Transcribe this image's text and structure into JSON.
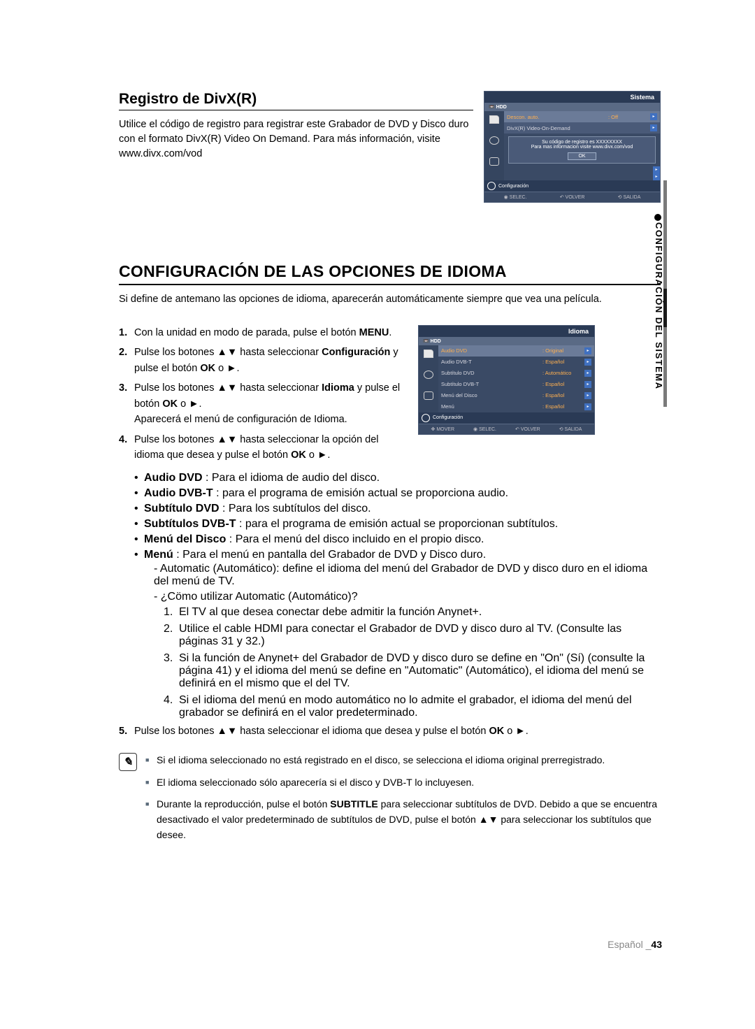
{
  "section1": {
    "title": "Registro de DivX(R)",
    "body": "Utilice el código de registro para registrar este Grabador de DVD y Disco duro con el formato DivX(R) Video On Demand. Para más información, visite www.divx.com/vod"
  },
  "osd1": {
    "title": "Sistema",
    "hdd": "HDD",
    "row1_label": "Descon. auto.",
    "row1_val": ": Off",
    "row2_label": "DivX(R) Video-On-Demand",
    "dialog_l1": "Su código de registro es XXXXXXXX",
    "dialog_l2": "Para mas informacion visite www.divx.com/vod",
    "ok": "OK",
    "config": "Configuración",
    "f1": "◉ SELEC.",
    "f2": "↶ VOLVER",
    "f3": "⟲ SALIDA"
  },
  "osd2": {
    "title": "Idioma",
    "hdd": "HDD",
    "rows": [
      {
        "label": "Audio DVD",
        "val": ": Original"
      },
      {
        "label": "Audio DVB-T",
        "val": ": Español"
      },
      {
        "label": "Subtítulo DVD",
        "val": ": Automático"
      },
      {
        "label": "Subtítulo DVB-T",
        "val": ": Español"
      },
      {
        "label": "Menú del Disco",
        "val": ": Español"
      },
      {
        "label": "Menú",
        "val": ": Español"
      }
    ],
    "config": "Configuración",
    "f0": "✥ MOVER",
    "f1": "◉ SELEC.",
    "f2": "↶ VOLVER",
    "f3": "⟲ SALIDA"
  },
  "heading": "CONFIGURACIÓN DE LAS OPCIONES DE IDIOMA",
  "intro": "Si define de antemano las opciones de idioma, aparecerán automáticamente siempre que vea una película.",
  "steps": {
    "s1_a": "Con la unidad en modo de parada, pulse el botón ",
    "s1_b": "MENU",
    "s1_c": ".",
    "s2_a": "Pulse los botones ▲▼ hasta seleccionar ",
    "s2_b": "Configuración",
    "s2_c": " y pulse el botón ",
    "s2_d": "OK",
    "s2_e": " o ►.",
    "s3_a": "Pulse los botones ▲▼ hasta seleccionar ",
    "s3_b": "Idioma",
    "s3_c": " y pulse el botón ",
    "s3_d": "OK",
    "s3_e": " o ►.",
    "s3_f": "Aparecerá el menú de configuración de Idioma.",
    "s4_a": "Pulse los botones ▲▼ hasta seleccionar la opción del idioma que desea y pulse el botón ",
    "s4_b": "OK",
    "s4_c": " o ►.",
    "s5_a": "Pulse los botones ▲▼ hasta seleccionar el idioma que desea y pulse el botón ",
    "s5_b": "OK",
    "s5_c": " o ►."
  },
  "bullets": {
    "b1_a": "Audio DVD",
    "b1_b": " : Para el idioma de audio del disco.",
    "b2_a": "Audio DVB-T",
    "b2_b": " : para el programa de emisión actual se proporciona audio.",
    "b3_a": "Subtítulo DVD",
    "b3_b": " : Para los subtítulos del disco.",
    "b4_a": "Subtítulos DVB-T",
    "b4_b": " : para el programa de emisión actual se proporcionan subtítulos.",
    "b5_a": "Menú del Disco",
    "b5_b": " : Para el menú del disco incluido en el propio disco.",
    "b6_a": "Menú",
    "b6_b": " : Para el menú en pantalla del Grabador de DVD y Disco duro.",
    "sub1": "- Automatic (Automático): define el idioma del menú del Grabador de DVD y disco duro en el idioma del menú de TV.",
    "sub2": "- ¿Cömo utilizar Automatic (Automático)?",
    "n1": "El TV al que desea conectar debe admitir la función Anynet+.",
    "n2": "Utilice el cable HDMI para conectar el Grabador de DVD y disco duro al TV. (Consulte las páginas 31 y 32.)",
    "n3": "Si la función de Anynet+ del Grabador de DVD y disco duro se define en \"On\" (Sí) (consulte la página 41) y el idioma del menú se define en \"Automatic\" (Automático), el idioma del menú se definirá en el mismo que el del TV.",
    "n4": "Si el idioma del menú en modo automático no lo admite el grabador, el idioma del menú del grabador se definirá en el valor predeterminado."
  },
  "notes": {
    "n1": "Si el idioma seleccionado no está registrado en el disco, se selecciona el idioma original prerregistrado.",
    "n2": "El idioma seleccionado sólo aparecería si el disco y DVB-T lo incluyesen.",
    "n3_a": "Durante la reproducción, pulse el botón ",
    "n3_b": "SUBTITLE",
    "n3_c": " para seleccionar subtítulos de DVD. Debido a que se encuentra desactivado el valor predeterminado de subtítulos de DVD, pulse el botón ▲▼ para seleccionar los subtítulos que desee."
  },
  "side_label": "CONFIGURACIÓN DEL SISTEMA",
  "footer": {
    "lang": "Español _",
    "page": "43"
  },
  "colors": {
    "osd_bg": "#2a3a55",
    "osd_row": "#3a4a65",
    "osd_accent": "#ffb050",
    "osd_arrow": "#4070c0"
  }
}
